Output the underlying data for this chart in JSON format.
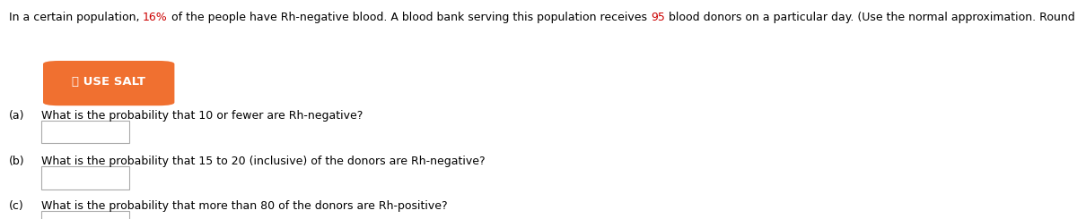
{
  "intro_text_parts": [
    {
      "text": "In a certain population, ",
      "color": "#000000"
    },
    {
      "text": "16%",
      "color": "#cc0000"
    },
    {
      "text": " of the people have Rh-negative blood. A blood bank serving this population receives ",
      "color": "#000000"
    },
    {
      "text": "95",
      "color": "#cc0000"
    },
    {
      "text": " blood donors on a particular day. (Use the normal approximation. Round your answers to four decimal places.)",
      "color": "#000000"
    }
  ],
  "button_label": "USE SALT",
  "button_color": "#f07030",
  "button_text_color": "#ffffff",
  "parts": [
    {
      "label": "(a)",
      "question": "What is the probability that 10 or fewer are Rh-negative?"
    },
    {
      "label": "(b)",
      "question": "What is the probability that 15 to 20 (inclusive) of the donors are Rh-negative?"
    },
    {
      "label": "(c)",
      "question": "What is the probability that more than 80 of the donors are Rh-positive?"
    }
  ],
  "text_color": "#000000",
  "background_color": "#ffffff",
  "fontsize_intro": 9.0,
  "fontsize_parts": 9.0,
  "fontsize_button": 9.5
}
